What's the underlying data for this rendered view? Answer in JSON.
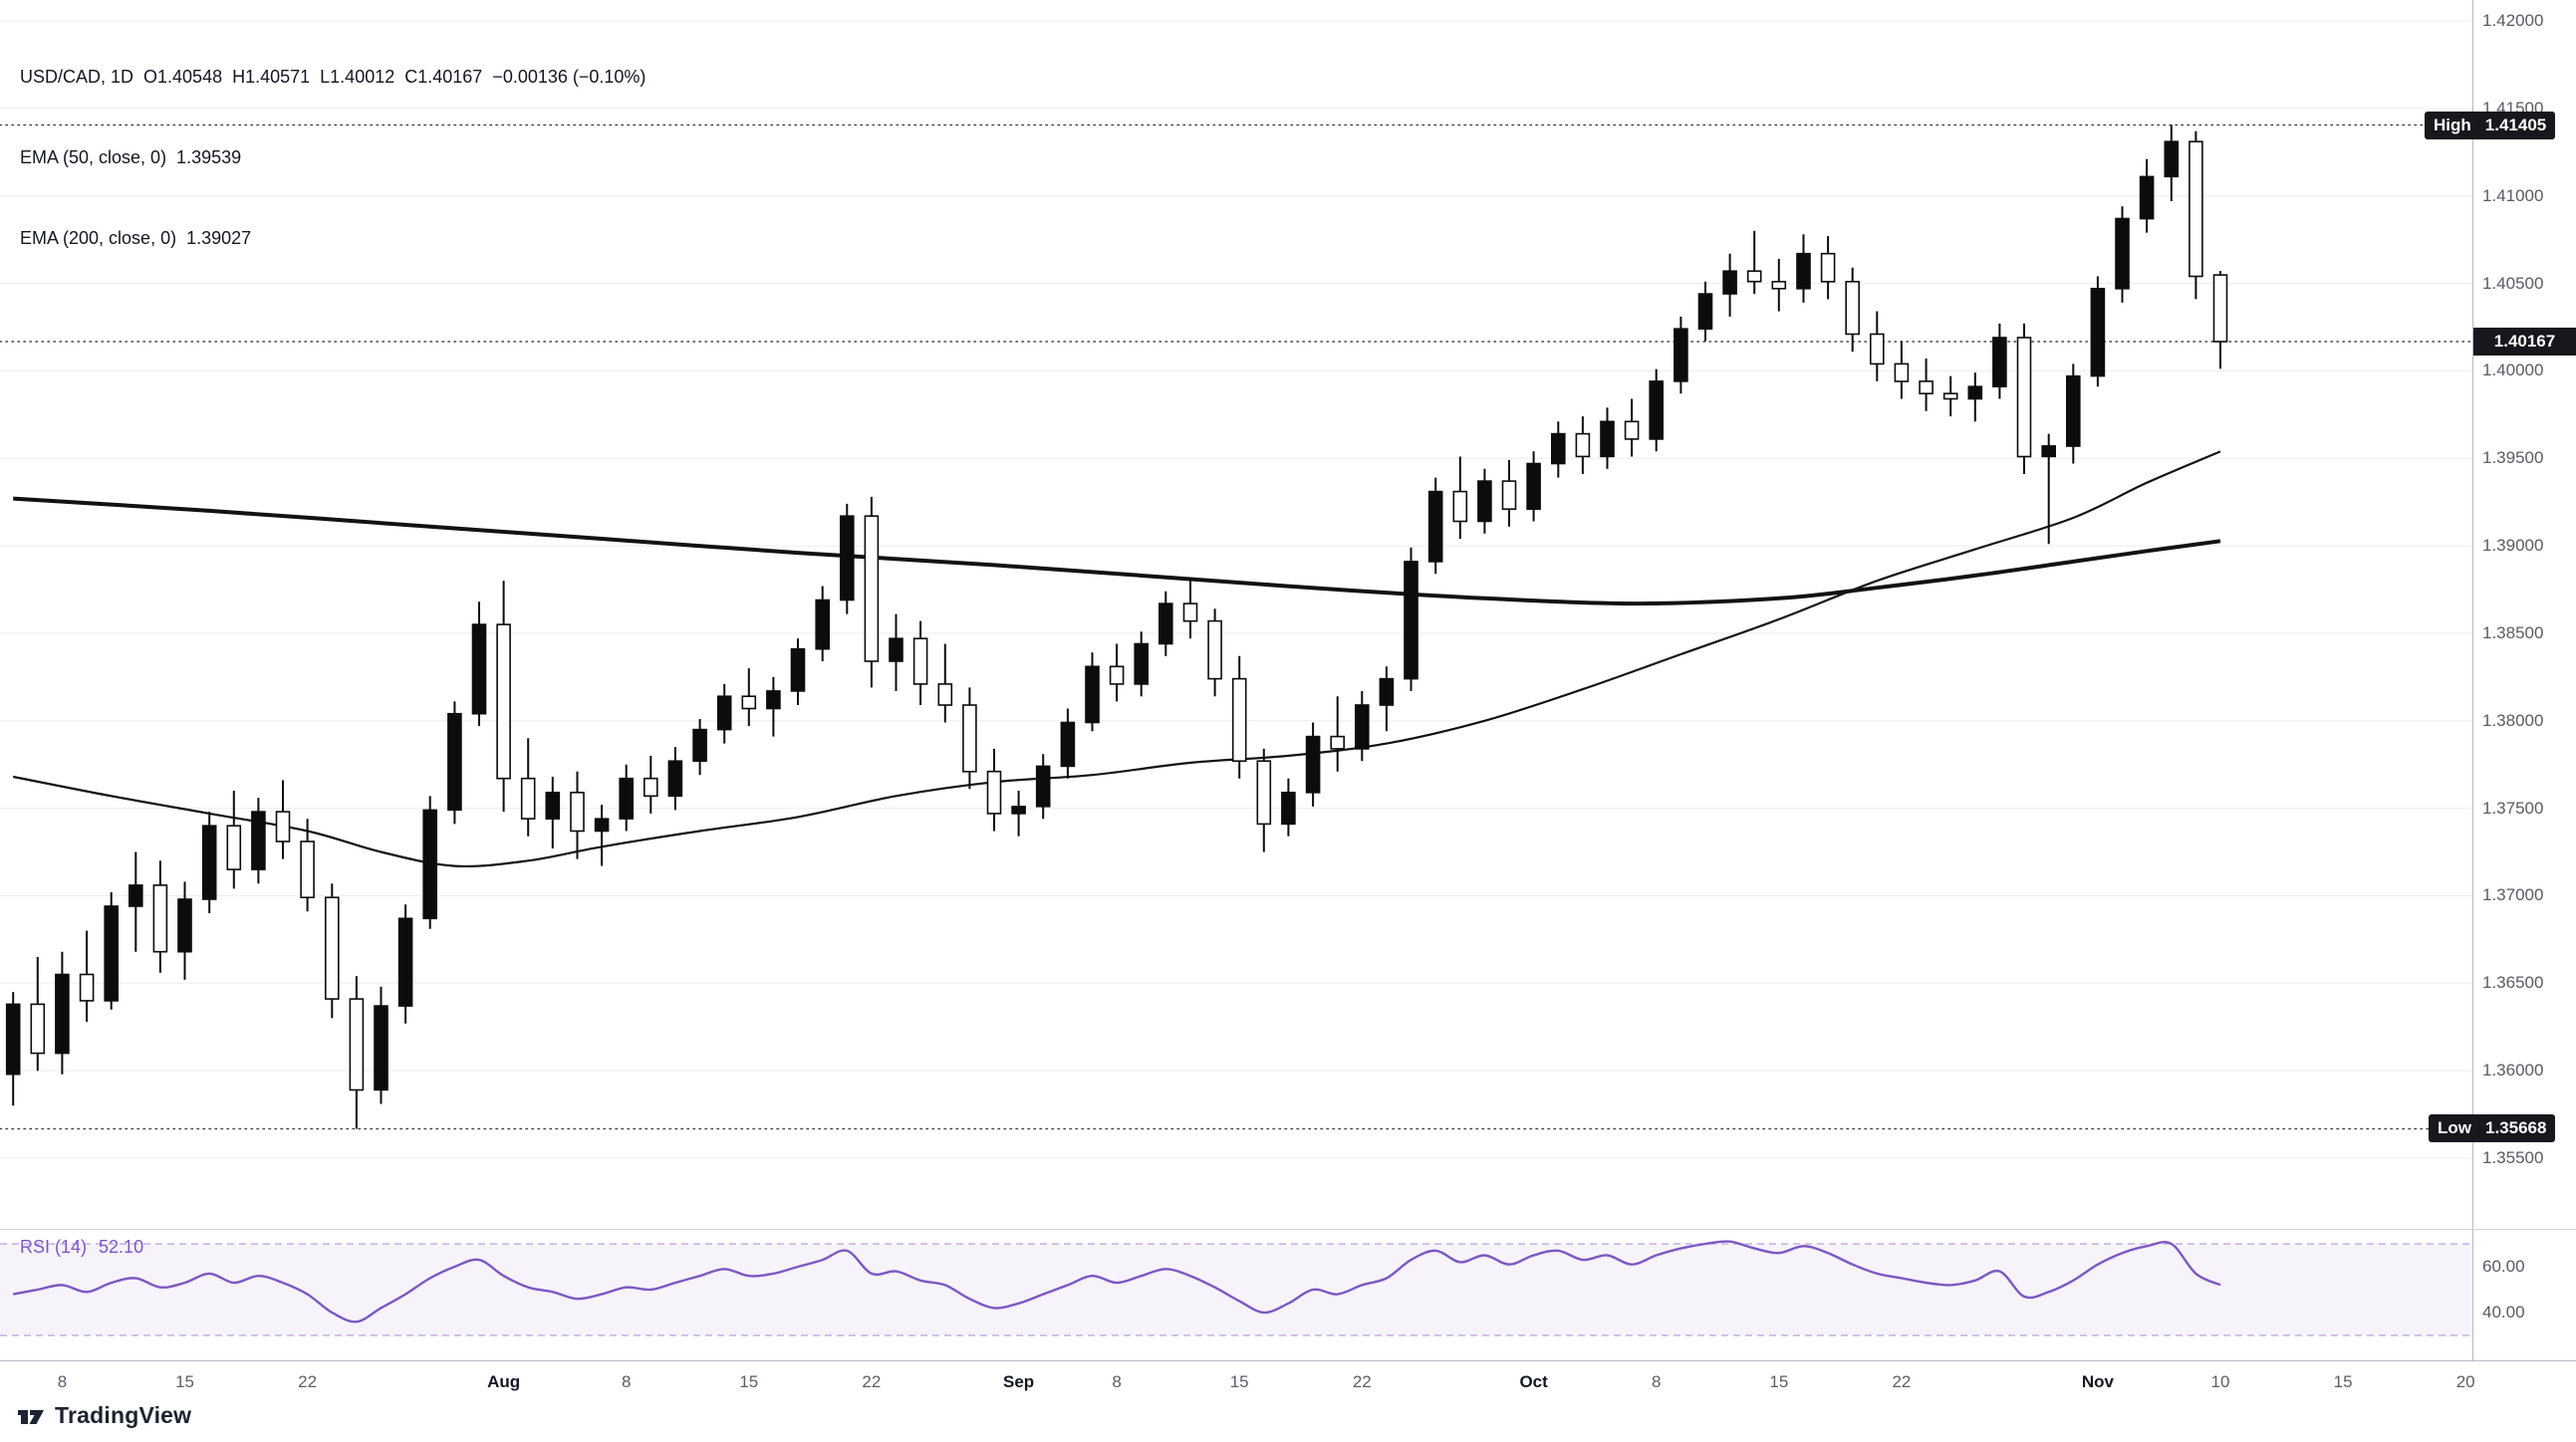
{
  "legend": {
    "line1": "USD/CAD, 1D  O1.40548  H1.40571  L1.40012  C1.40167  −0.00136 (−0.10%)",
    "line2": "EMA (50, close, 0)  1.39539",
    "line3": "EMA (200, close, 0)  1.39027"
  },
  "footer": {
    "logo_text": "TradingView"
  },
  "chart_data": {
    "type": "candlestick",
    "symbol": "USD/CAD",
    "interval": "1D",
    "colors": {
      "candle_up": "#0c0c0c",
      "candle_down": "#ffffff",
      "candle_outline": "#0c0c0c",
      "ema": "#121212",
      "grid": "#ededf0",
      "marker_line": "#44464c",
      "rsi": "#7e57c2",
      "badge_bg": "#16181d",
      "badge_text": "#ffffff"
    },
    "price_axis_ticks": [
      1.42,
      1.415,
      1.41,
      1.405,
      1.4,
      1.395,
      1.39,
      1.385,
      1.38,
      1.375,
      1.37,
      1.365,
      1.36,
      1.355
    ],
    "price_range": {
      "top": 1.42,
      "bottom": 1.355
    },
    "high_marker": {
      "label": "High",
      "value": "1.41405",
      "price": 1.41405
    },
    "low_marker": {
      "label": "Low",
      "value": "1.35668",
      "price": 1.35668
    },
    "last_price": {
      "value": "1.40167",
      "price": 1.40167
    },
    "total_slots": 101,
    "time_axis": [
      {
        "slot": 2,
        "label": "8"
      },
      {
        "slot": 7,
        "label": "15"
      },
      {
        "slot": 12,
        "label": "22"
      },
      {
        "slot": 20,
        "label": "Aug"
      },
      {
        "slot": 25,
        "label": "8"
      },
      {
        "slot": 30,
        "label": "15"
      },
      {
        "slot": 35,
        "label": "22"
      },
      {
        "slot": 41,
        "label": "Sep"
      },
      {
        "slot": 45,
        "label": "8"
      },
      {
        "slot": 50,
        "label": "15"
      },
      {
        "slot": 55,
        "label": "22"
      },
      {
        "slot": 62,
        "label": "Oct"
      },
      {
        "slot": 67,
        "label": "8"
      },
      {
        "slot": 72,
        "label": "15"
      },
      {
        "slot": 77,
        "label": "22"
      },
      {
        "slot": 85,
        "label": "Nov"
      },
      {
        "slot": 90,
        "label": "10"
      },
      {
        "slot": 95,
        "label": "15"
      },
      {
        "slot": 100,
        "label": "20"
      }
    ],
    "candles": [
      [
        1.3598,
        1.3645,
        1.358,
        1.3638
      ],
      [
        1.3638,
        1.3665,
        1.36,
        1.361
      ],
      [
        1.361,
        1.3668,
        1.3598,
        1.3655
      ],
      [
        1.3655,
        1.368,
        1.3628,
        1.364
      ],
      [
        1.364,
        1.3702,
        1.3635,
        1.3694
      ],
      [
        1.3694,
        1.3725,
        1.3668,
        1.3706
      ],
      [
        1.3706,
        1.372,
        1.3656,
        1.3668
      ],
      [
        1.3668,
        1.3708,
        1.3652,
        1.3698
      ],
      [
        1.3698,
        1.3748,
        1.369,
        1.374
      ],
      [
        1.374,
        1.376,
        1.3704,
        1.3715
      ],
      [
        1.3715,
        1.3756,
        1.3707,
        1.3748
      ],
      [
        1.3748,
        1.3766,
        1.3721,
        1.3731
      ],
      [
        1.3731,
        1.3744,
        1.3691,
        1.3699
      ],
      [
        1.3699,
        1.3707,
        1.363,
        1.3641
      ],
      [
        1.3641,
        1.3654,
        1.35668,
        1.3589
      ],
      [
        1.3589,
        1.3648,
        1.3581,
        1.3637
      ],
      [
        1.3637,
        1.3695,
        1.3627,
        1.3687
      ],
      [
        1.3687,
        1.3757,
        1.3681,
        1.3749
      ],
      [
        1.3749,
        1.3811,
        1.3741,
        1.3804
      ],
      [
        1.3804,
        1.3868,
        1.3797,
        1.3855
      ],
      [
        1.3855,
        1.388,
        1.3748,
        1.3767
      ],
      [
        1.3767,
        1.379,
        1.3734,
        1.3744
      ],
      [
        1.3744,
        1.3768,
        1.3727,
        1.3759
      ],
      [
        1.3759,
        1.3771,
        1.3721,
        1.3737
      ],
      [
        1.3737,
        1.3752,
        1.3717,
        1.3744
      ],
      [
        1.3744,
        1.3775,
        1.3737,
        1.3767
      ],
      [
        1.3767,
        1.378,
        1.3747,
        1.3757
      ],
      [
        1.3757,
        1.3785,
        1.3749,
        1.3777
      ],
      [
        1.3777,
        1.3801,
        1.3769,
        1.3795
      ],
      [
        1.3795,
        1.3821,
        1.3787,
        1.3814
      ],
      [
        1.3814,
        1.383,
        1.3797,
        1.3807
      ],
      [
        1.3807,
        1.3825,
        1.3791,
        1.3817
      ],
      [
        1.3817,
        1.3847,
        1.3809,
        1.3841
      ],
      [
        1.3841,
        1.3877,
        1.3834,
        1.3869
      ],
      [
        1.3869,
        1.3924,
        1.3861,
        1.3917
      ],
      [
        1.3917,
        1.3928,
        1.3819,
        1.3834
      ],
      [
        1.3834,
        1.3861,
        1.3817,
        1.3847
      ],
      [
        1.3847,
        1.3857,
        1.3809,
        1.3821
      ],
      [
        1.3821,
        1.3844,
        1.3799,
        1.3809
      ],
      [
        1.3809,
        1.3819,
        1.3761,
        1.3771
      ],
      [
        1.3771,
        1.3784,
        1.3737,
        1.3747
      ],
      [
        1.3747,
        1.376,
        1.3734,
        1.3751
      ],
      [
        1.3751,
        1.3781,
        1.3744,
        1.3774
      ],
      [
        1.3774,
        1.3807,
        1.3767,
        1.3799
      ],
      [
        1.3799,
        1.3839,
        1.3794,
        1.3831
      ],
      [
        1.3831,
        1.3844,
        1.3811,
        1.3821
      ],
      [
        1.3821,
        1.3851,
        1.3814,
        1.3844
      ],
      [
        1.3844,
        1.3874,
        1.3837,
        1.3867
      ],
      [
        1.3867,
        1.3881,
        1.3847,
        1.3857
      ],
      [
        1.3857,
        1.3864,
        1.3814,
        1.3824
      ],
      [
        1.3824,
        1.3837,
        1.3767,
        1.3777
      ],
      [
        1.3777,
        1.3784,
        1.3725,
        1.3741
      ],
      [
        1.3741,
        1.3767,
        1.3734,
        1.3759
      ],
      [
        1.3759,
        1.3799,
        1.3751,
        1.3791
      ],
      [
        1.3791,
        1.3814,
        1.3771,
        1.3784
      ],
      [
        1.3784,
        1.3817,
        1.3777,
        1.3809
      ],
      [
        1.3809,
        1.3831,
        1.3794,
        1.3824
      ],
      [
        1.3824,
        1.3899,
        1.3817,
        1.3891
      ],
      [
        1.3891,
        1.3939,
        1.3884,
        1.3931
      ],
      [
        1.3931,
        1.3951,
        1.3904,
        1.3914
      ],
      [
        1.3914,
        1.3944,
        1.3907,
        1.3937
      ],
      [
        1.3937,
        1.3949,
        1.3911,
        1.3921
      ],
      [
        1.3921,
        1.3954,
        1.3914,
        1.3947
      ],
      [
        1.3947,
        1.3971,
        1.3939,
        1.3964
      ],
      [
        1.3964,
        1.3974,
        1.3941,
        1.3951
      ],
      [
        1.3951,
        1.3979,
        1.3944,
        1.3971
      ],
      [
        1.3971,
        1.3984,
        1.3951,
        1.3961
      ],
      [
        1.3961,
        1.4001,
        1.3954,
        1.3994
      ],
      [
        1.3994,
        1.4031,
        1.3987,
        1.4024
      ],
      [
        1.4024,
        1.4051,
        1.4017,
        1.4044
      ],
      [
        1.4044,
        1.4067,
        1.4031,
        1.4057
      ],
      [
        1.4057,
        1.408,
        1.4044,
        1.4051
      ],
      [
        1.4051,
        1.4064,
        1.4034,
        1.4047
      ],
      [
        1.4047,
        1.4078,
        1.4039,
        1.4067
      ],
      [
        1.4067,
        1.4077,
        1.4041,
        1.4051
      ],
      [
        1.4051,
        1.4059,
        1.4011,
        1.4021
      ],
      [
        1.4021,
        1.4034,
        1.3994,
        1.4004
      ],
      [
        1.4004,
        1.4017,
        1.3984,
        1.3994
      ],
      [
        1.3994,
        1.4007,
        1.3977,
        1.3987
      ],
      [
        1.3987,
        1.3997,
        1.3974,
        1.3984
      ],
      [
        1.3984,
        1.3999,
        1.3971,
        1.3991
      ],
      [
        1.3991,
        1.4027,
        1.3984,
        1.4019
      ],
      [
        1.4019,
        1.4027,
        1.3941,
        1.3951
      ],
      [
        1.3951,
        1.3964,
        1.3901,
        1.3957
      ],
      [
        1.3957,
        1.4004,
        1.3947,
        1.3997
      ],
      [
        1.3997,
        1.4054,
        1.3991,
        1.4047
      ],
      [
        1.4047,
        1.4094,
        1.4039,
        1.4087
      ],
      [
        1.4087,
        1.4121,
        1.4079,
        1.4111
      ],
      [
        1.4111,
        1.41405,
        1.4097,
        1.4131
      ],
      [
        1.4131,
        1.4137,
        1.4041,
        1.4054
      ],
      [
        1.40548,
        1.40571,
        1.40012,
        1.40167
      ]
    ],
    "ema50": {
      "label": "EMA (50, close, 0)",
      "last_value": "1.39539",
      "points": [
        [
          0,
          1.3768
        ],
        [
          4,
          1.3757
        ],
        [
          8,
          1.3747
        ],
        [
          12,
          1.3737
        ],
        [
          15,
          1.3725
        ],
        [
          18,
          1.3717
        ],
        [
          21,
          1.372
        ],
        [
          24,
          1.3728
        ],
        [
          28,
          1.3737
        ],
        [
          32,
          1.3745
        ],
        [
          36,
          1.3757
        ],
        [
          40,
          1.3765
        ],
        [
          44,
          1.3769
        ],
        [
          48,
          1.3776
        ],
        [
          52,
          1.378
        ],
        [
          56,
          1.3787
        ],
        [
          60,
          1.38
        ],
        [
          64,
          1.3818
        ],
        [
          68,
          1.3838
        ],
        [
          72,
          1.3858
        ],
        [
          76,
          1.388
        ],
        [
          80,
          1.3898
        ],
        [
          84,
          1.3916
        ],
        [
          87,
          1.3936
        ],
        [
          90,
          1.39539
        ]
      ]
    },
    "ema200": {
      "label": "EMA (200, close, 0)",
      "last_value": "1.39027",
      "points": [
        [
          0,
          1.3927
        ],
        [
          8,
          1.392
        ],
        [
          16,
          1.3912
        ],
        [
          24,
          1.3904
        ],
        [
          32,
          1.3896
        ],
        [
          40,
          1.3889
        ],
        [
          48,
          1.3881
        ],
        [
          54,
          1.3875
        ],
        [
          60,
          1.387
        ],
        [
          66,
          1.3867
        ],
        [
          72,
          1.387
        ],
        [
          76,
          1.3876
        ],
        [
          80,
          1.3883
        ],
        [
          84,
          1.3891
        ],
        [
          87,
          1.3897
        ],
        [
          90,
          1.39027
        ]
      ]
    },
    "rsi": {
      "label": "RSI (14)",
      "value": "52.10",
      "upper_band": 70,
      "lower_band": 30,
      "axis_ticks": [
        60,
        40
      ],
      "values": [
        48,
        50,
        52,
        49,
        53,
        55,
        51,
        53,
        57,
        53,
        56,
        53,
        48,
        40,
        36,
        42,
        48,
        55,
        60,
        63,
        56,
        51,
        49,
        46,
        48,
        51,
        50,
        53,
        56,
        59,
        56,
        57,
        60,
        63,
        67,
        57,
        58,
        54,
        52,
        46,
        42,
        44,
        48,
        52,
        56,
        53,
        56,
        59,
        56,
        51,
        45,
        40,
        44,
        50,
        48,
        52,
        55,
        63,
        67,
        62,
        65,
        61,
        65,
        67,
        63,
        65,
        61,
        65,
        68,
        70,
        71,
        68,
        66,
        69,
        66,
        61,
        57,
        55,
        53,
        52,
        54,
        58,
        47,
        49,
        54,
        61,
        66,
        69,
        70,
        57,
        52.1
      ]
    }
  }
}
